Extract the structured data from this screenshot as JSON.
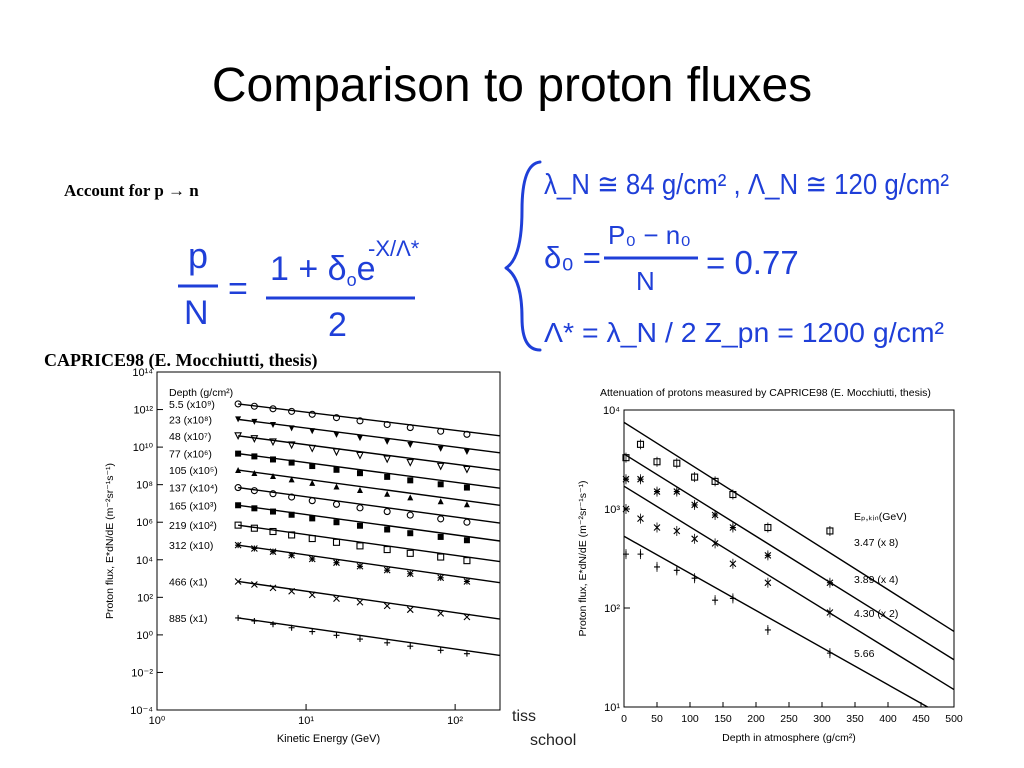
{
  "slide": {
    "title": "Comparison to proton fluxes",
    "account_label": "Account for p → n",
    "caprice_label": "CAPRICE98 (E. Mocchiutti, thesis)",
    "footer_fragment_1": "tiss",
    "footer_fragment_2": "school"
  },
  "equation": {
    "lhs_num": "p",
    "lhs_den": "N",
    "equals": "=",
    "rhs_num_prefix": "1 + δ",
    "rhs_num_sub": "o",
    "rhs_num_e": "e",
    "rhs_exp": "-X/Λ*",
    "rhs_den": "2"
  },
  "notes": {
    "line1": "λ_N ≅ 84 g/cm² , Λ_N ≅ 120 g/cm²",
    "line2_lhs": "δ₀ =",
    "line2_num": "P₀ − n₀",
    "line2_den": "N",
    "line2_rhs": "= 0.77",
    "line3": "Λ* = λ_N / 2 Z_pn = 1200 g/cm²"
  },
  "colors": {
    "ink_blue": "#1f3fd8",
    "text": "#000000"
  },
  "chart_data": [
    {
      "type": "scatter",
      "title": "",
      "xlabel": "Kinetic Energy (GeV)",
      "ylabel": "Proton flux, E*dN/dE (m⁻²sr⁻¹s⁻¹)",
      "xscale": "log",
      "yscale": "log",
      "xlim": [
        1,
        200
      ],
      "ylim": [
        0.0001,
        100000000000000
      ],
      "x_ticks": [
        "10⁰",
        "10¹",
        "10²"
      ],
      "y_ticks": [
        "10⁻⁴",
        "10⁻²",
        "10⁰",
        "10²",
        "10⁴",
        "10⁶",
        "10⁸",
        "10¹⁰",
        "10¹²",
        "10¹⁴"
      ],
      "legend_header": "Depth (g/cm²)",
      "legend_position": "left",
      "x": [
        3.5,
        4.5,
        6,
        8,
        11,
        16,
        23,
        35,
        50,
        80,
        120
      ],
      "series": [
        {
          "name": "5.5 (x10⁹)",
          "marker": "o",
          "line": [
            [
              3.5,
              2000000000000
            ],
            [
              200,
              40000000000
            ]
          ],
          "values": [
            2000000000000,
            1500000000000,
            1100000000000,
            800000000000,
            560000000000,
            370000000000,
            250000000000,
            160000000000,
            110000000000,
            70000000000,
            48000000000
          ]
        },
        {
          "name": "23 (x10⁸)",
          "marker": "▼",
          "line": [
            [
              3.5,
              300000000000
            ],
            [
              200,
              5000000000
            ]
          ],
          "values": [
            300000000000,
            220000000000,
            150000000000,
            100000000000,
            70000000000,
            45000000000,
            30000000000,
            19000000000,
            13000000000,
            8000000000,
            5500000000
          ]
        },
        {
          "name": "48 (x10⁷)",
          "marker": "▽",
          "line": [
            [
              3.5,
              40000000000
            ],
            [
              200,
              600000000
            ]
          ],
          "values": [
            40000000000,
            28000000000,
            19000000000,
            13000000000,
            8500000000,
            5500000000,
            3600000000,
            2300000000,
            1500000000,
            950000000,
            650000000
          ]
        },
        {
          "name": "77 (x10⁶)",
          "marker": "■",
          "line": [
            [
              3.5,
              4500000000
            ],
            [
              200,
              65000000
            ]
          ],
          "values": [
            4500000000,
            3200000000,
            2200000000,
            1500000000,
            980000000,
            620000000,
            410000000,
            260000000,
            170000000,
            105000000,
            70000000
          ]
        },
        {
          "name": "105 (x10⁵)",
          "marker": "▲",
          "line": [
            [
              3.5,
              600000000
            ],
            [
              200,
              8000000
            ]
          ],
          "values": [
            600000000,
            420000000,
            290000000,
            190000000,
            125000000,
            80000000,
            52000000,
            33000000,
            21000000,
            13000000,
            9000000
          ]
        },
        {
          "name": "137 (x10⁴)",
          "marker": "o",
          "line": [
            [
              3.5,
              70000000
            ],
            [
              200,
              900000
            ]
          ],
          "values": [
            70000000,
            48000000,
            33000000,
            22000000,
            14000000,
            9000000,
            5800000,
            3700000,
            2400000,
            1500000,
            1000000
          ]
        },
        {
          "name": "165 (x10³)",
          "marker": "■",
          "line": [
            [
              3.5,
              8000000
            ],
            [
              200,
              100000
            ]
          ],
          "values": [
            8000000,
            5500000,
            3700000,
            2500000,
            1600000,
            1000000,
            650000,
            410000,
            260000,
            165000,
            110000
          ]
        },
        {
          "name": "219 (x10²)",
          "marker": "□",
          "line": [
            [
              3.5,
              700000
            ],
            [
              200,
              8000
            ]
          ],
          "values": [
            700000,
            480000,
            320000,
            210000,
            135000,
            85000,
            55000,
            35000,
            22000,
            14000,
            9000
          ]
        },
        {
          "name": "312 (x10)",
          "marker": "*",
          "line": [
            [
              3.5,
              60000
            ],
            [
              200,
              600
            ]
          ],
          "values": [
            60000,
            40000,
            27000,
            17500,
            11000,
            7000,
            4500,
            2800,
            1800,
            1100,
            700
          ]
        },
        {
          "name": "466 (x1)",
          "marker": "×",
          "line": [
            [
              3.5,
              700
            ],
            [
              200,
              7
            ]
          ],
          "values": [
            700,
            480,
            320,
            210,
            135,
            85,
            55,
            35,
            22,
            14,
            9
          ]
        },
        {
          "name": "885 (x1)",
          "marker": "+",
          "line": [
            [
              3.5,
              8
            ],
            [
              200,
              0.08
            ]
          ],
          "values": [
            8,
            5.5,
            3.7,
            2.4,
            1.5,
            0.95,
            0.6,
            0.38,
            0.25,
            0.15,
            0.1
          ]
        }
      ]
    },
    {
      "type": "scatter",
      "title": "Attenuation of protons measured by CAPRICE98 (E. Mocchiutti, thesis)",
      "xlabel": "Depth in atmosphere (g/cm²)",
      "ylabel": "Proton flux, E*dN/dE (m⁻²sr⁻¹s⁻¹)",
      "xscale": "linear",
      "yscale": "log",
      "xlim": [
        0,
        500
      ],
      "ylim": [
        10,
        10000
      ],
      "x_ticks": [
        "0",
        "50",
        "100",
        "150",
        "200",
        "250",
        "300",
        "350",
        "400",
        "450",
        "500"
      ],
      "y_ticks": [
        "10¹",
        "10²",
        "10³",
        "10⁴"
      ],
      "legend_header": "Eₚ,ₖᵢₙ(GeV)",
      "legend_position": "right",
      "series": [
        {
          "name": "3.47 (x 8)",
          "marker": "□",
          "line": [
            [
              0,
              7500
            ],
            [
              500,
              58
            ]
          ],
          "x": [
            3,
            25,
            50,
            80,
            107,
            138,
            165,
            218,
            312
          ],
          "y": [
            3300,
            4500,
            3000,
            2900,
            2100,
            1900,
            1400,
            650,
            600
          ]
        },
        {
          "name": "3.89 (x 4)",
          "marker": "*",
          "line": [
            [
              0,
              3600
            ],
            [
              500,
              30
            ]
          ],
          "x": [
            3,
            25,
            50,
            80,
            107,
            138,
            165,
            218,
            312
          ],
          "y": [
            2000,
            2000,
            1500,
            1500,
            1100,
            870,
            650,
            340,
            180
          ]
        },
        {
          "name": "4.30 (x 2)",
          "marker": "×",
          "line": [
            [
              0,
              1700
            ],
            [
              500,
              15
            ]
          ],
          "x": [
            3,
            25,
            50,
            80,
            107,
            138,
            165,
            218,
            312
          ],
          "y": [
            1000,
            800,
            650,
            600,
            500,
            450,
            280,
            180,
            90
          ]
        },
        {
          "name": "5.66",
          "marker": "+",
          "line": [
            [
              0,
              530
            ],
            [
              460,
              10
            ]
          ],
          "x": [
            3,
            25,
            50,
            80,
            107,
            138,
            165,
            218,
            312
          ],
          "y": [
            350,
            350,
            260,
            240,
            200,
            120,
            125,
            60,
            35
          ]
        }
      ]
    }
  ]
}
